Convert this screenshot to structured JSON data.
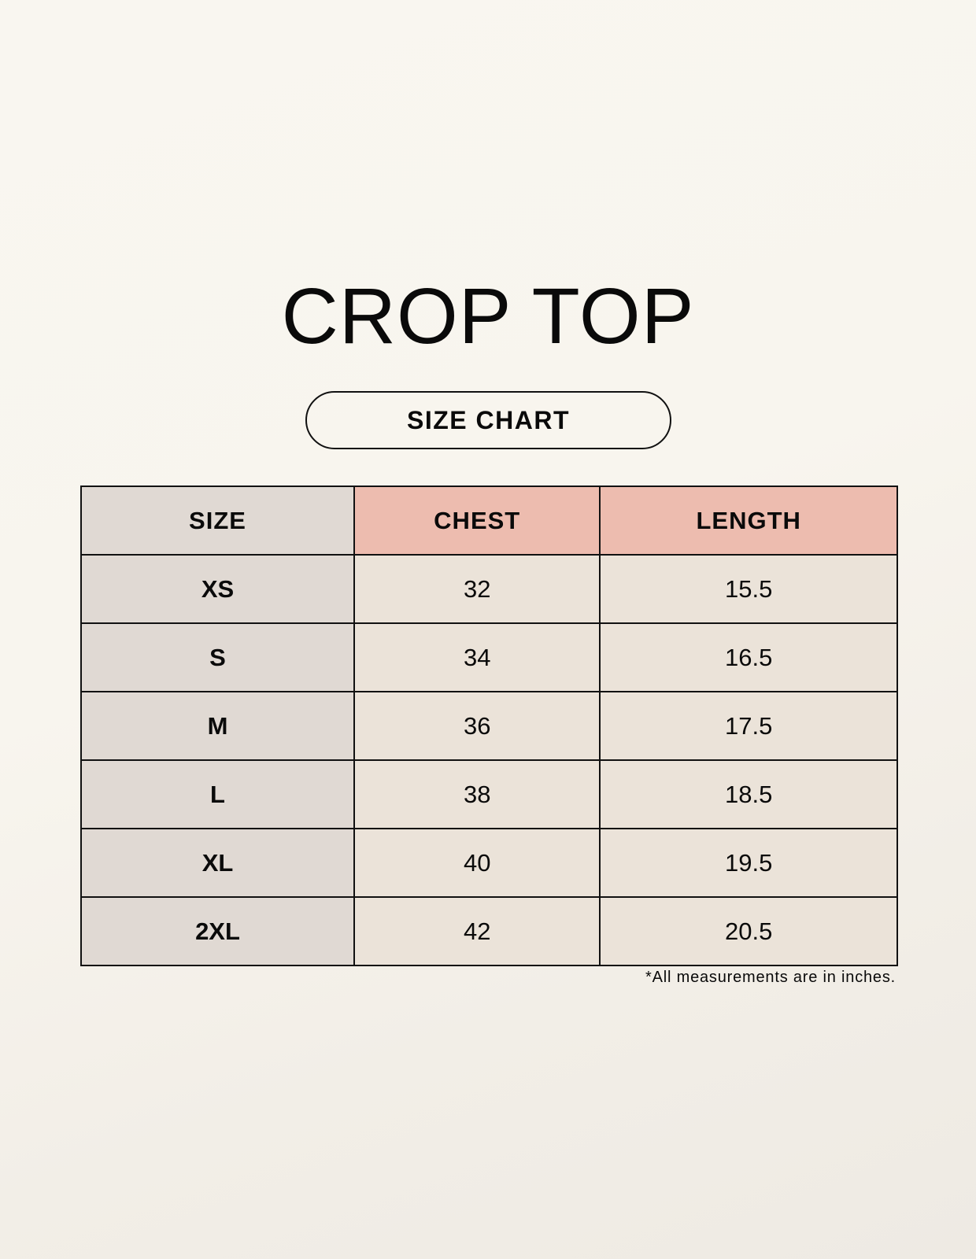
{
  "title": "CROP TOP",
  "subtitle": "SIZE CHART",
  "colors": {
    "header_accent": "#edbcaf",
    "size_column": "#e0d9d3",
    "cell": "#ebe3d9",
    "background": "#f8f5ee"
  },
  "table": {
    "headers": [
      "SIZE",
      "CHEST",
      "LENGTH"
    ],
    "rows": [
      [
        "XS",
        "32",
        "15.5"
      ],
      [
        "S",
        "34",
        "16.5"
      ],
      [
        "M",
        "36",
        "17.5"
      ],
      [
        "L",
        "38",
        "18.5"
      ],
      [
        "XL",
        "40",
        "19.5"
      ],
      [
        "2XL",
        "42",
        "20.5"
      ]
    ]
  },
  "footnote": "*All measurements are in inches."
}
